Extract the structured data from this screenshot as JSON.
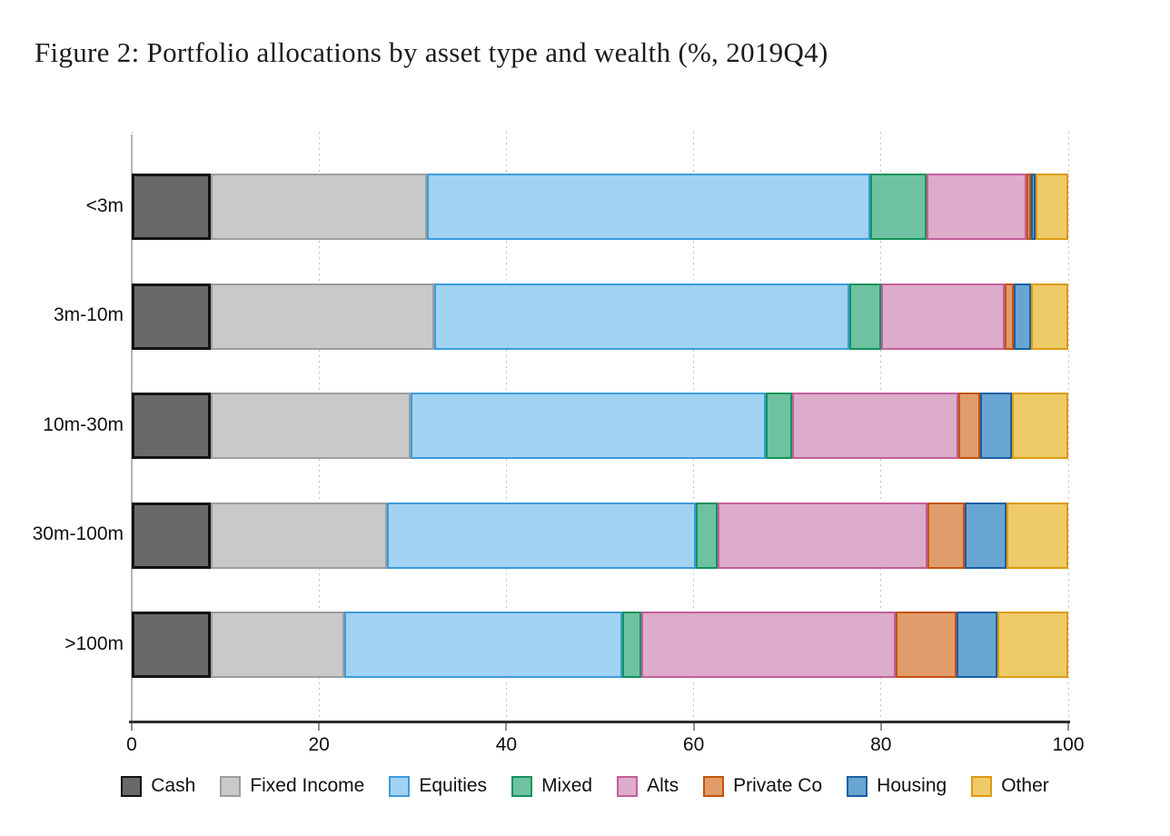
{
  "title": "Figure 2: Portfolio allocations by asset type and wealth (%, 2019Q4)",
  "chart_data": {
    "type": "bar",
    "orientation": "horizontal",
    "stacked": true,
    "title": "Figure 2: Portfolio allocations by asset type and wealth (%, 2019Q4)",
    "xlabel": "",
    "ylabel": "",
    "xlim": [
      0,
      100
    ],
    "x_ticks": [
      0,
      20,
      40,
      60,
      80,
      100
    ],
    "grid": "dotted-vertical",
    "legend_position": "bottom",
    "categories": [
      "<3m",
      "3m-10m",
      "10m-30m",
      "30m-100m",
      ">100m"
    ],
    "series": [
      {
        "name": "Cash",
        "fill": "#696969",
        "border": "#141414",
        "border_px": 3,
        "values": [
          8.4,
          8.4,
          8.4,
          8.4,
          8.4
        ]
      },
      {
        "name": "Fixed Income",
        "fill": "#c9c9c9",
        "border": "#9d9d9d",
        "border_px": 2,
        "values": [
          23.1,
          23.9,
          21.4,
          18.9,
          14.3
        ]
      },
      {
        "name": "Equities",
        "fill": "#a2d2f2",
        "border": "#3c9bdc",
        "border_px": 2,
        "values": [
          47.4,
          44.3,
          37.9,
          32.9,
          29.7
        ]
      },
      {
        "name": "Mixed",
        "fill": "#6ec2a1",
        "border": "#12935a",
        "border_px": 2,
        "values": [
          6.0,
          3.4,
          2.8,
          2.4,
          2.0
        ]
      },
      {
        "name": "Alts",
        "fill": "#dcacca",
        "border": "#c25f9b",
        "border_px": 2,
        "values": [
          10.6,
          13.2,
          17.8,
          22.4,
          27.2
        ]
      },
      {
        "name": "Private Co",
        "fill": "#e09d6b",
        "border": "#c3540f",
        "border_px": 2,
        "values": [
          0.5,
          1.0,
          2.3,
          3.9,
          6.5
        ]
      },
      {
        "name": "Housing",
        "fill": "#69a5d2",
        "border": "#1a5fa3",
        "border_px": 2,
        "values": [
          0.5,
          1.8,
          3.4,
          4.5,
          4.3
        ]
      },
      {
        "name": "Other",
        "fill": "#efca69",
        "border": "#db9b10",
        "border_px": 2,
        "values": [
          3.5,
          4.0,
          6.0,
          6.6,
          7.6
        ]
      }
    ]
  }
}
